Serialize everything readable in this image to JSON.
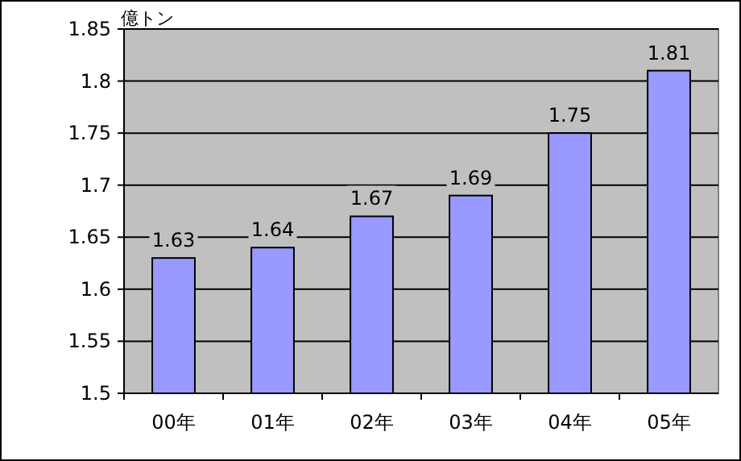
{
  "chart_data": {
    "type": "bar",
    "ylabel": "億トン",
    "categories": [
      "00年",
      "01年",
      "02年",
      "03年",
      "04年",
      "05年"
    ],
    "values": [
      1.63,
      1.64,
      1.67,
      1.69,
      1.75,
      1.81
    ],
    "color": "#9999ff",
    "ylim": [
      1.5,
      1.85
    ],
    "yticks": [
      1.5,
      1.55,
      1.6,
      1.65,
      1.7,
      1.75,
      1.8,
      1.85
    ],
    "grid": "y",
    "data_labels": true
  }
}
